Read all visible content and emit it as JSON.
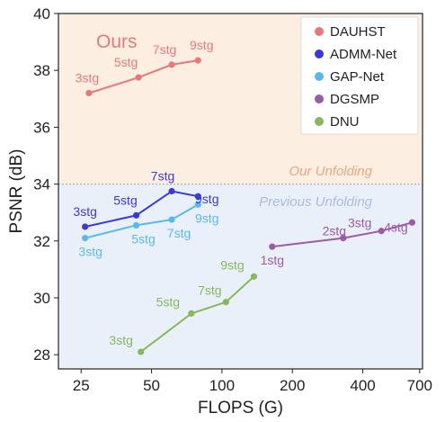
{
  "chart_data": {
    "type": "scatter",
    "title": "",
    "xlabel": "FLOPS (G)",
    "ylabel": "PSNR (dB)",
    "xscale": "log",
    "xlim": [
      20,
      720
    ],
    "ylim": [
      27.5,
      40
    ],
    "xticks": [
      25,
      50,
      100,
      200,
      400,
      700
    ],
    "xtick_labels": [
      "25",
      "50",
      "100",
      "200",
      "400",
      "700"
    ],
    "yticks": [
      28,
      30,
      32,
      34,
      36,
      38,
      40
    ],
    "ytick_labels": [
      "28",
      "30",
      "32",
      "34",
      "36",
      "38",
      "40"
    ],
    "divider_y": 34,
    "grid": false,
    "legend_position": "top-right",
    "annotations": {
      "ours": "Ours",
      "our_unfolding": "Our Unfolding",
      "previous_unfolding": "Previous Unfolding"
    },
    "region_colors": {
      "top": "#fcefe2",
      "bottom": "#eaf0f9",
      "divider": "#b8b8b8"
    },
    "series": [
      {
        "name": "DAUHST",
        "color": "#e8787c",
        "points": [
          {
            "x": 27,
            "y": 37.2,
            "label": "3stg"
          },
          {
            "x": 44,
            "y": 37.75,
            "label": "5stg"
          },
          {
            "x": 61,
            "y": 38.2,
            "label": "7stg"
          },
          {
            "x": 79,
            "y": 38.35,
            "label": "9stg"
          }
        ]
      },
      {
        "name": "ADMM-Net",
        "color": "#3a3ad8",
        "points": [
          {
            "x": 26,
            "y": 32.5,
            "label": "3stg"
          },
          {
            "x": 43,
            "y": 32.9,
            "label": "5stg"
          },
          {
            "x": 61,
            "y": 33.75,
            "label": "7stg"
          },
          {
            "x": 79,
            "y": 33.57,
            "label": "9stg"
          }
        ]
      },
      {
        "name": "GAP-Net",
        "color": "#5bb8ec",
        "points": [
          {
            "x": 26,
            "y": 32.1,
            "label": "3stg"
          },
          {
            "x": 43,
            "y": 32.55,
            "label": "5stg"
          },
          {
            "x": 61,
            "y": 32.75,
            "label": "7stg"
          },
          {
            "x": 79,
            "y": 33.28,
            "label": "9stg"
          }
        ]
      },
      {
        "name": "DGSMP",
        "color": "#9a5ba8",
        "points": [
          {
            "x": 164,
            "y": 31.8,
            "label": "1stg"
          },
          {
            "x": 330,
            "y": 32.1,
            "label": "2stg"
          },
          {
            "x": 480,
            "y": 32.35,
            "label": "3stg"
          },
          {
            "x": 650,
            "y": 32.65,
            "label": "4stg"
          }
        ]
      },
      {
        "name": "DNU",
        "color": "#86b85e",
        "points": [
          {
            "x": 45,
            "y": 28.1,
            "label": "3stg"
          },
          {
            "x": 74,
            "y": 29.45,
            "label": "5stg"
          },
          {
            "x": 104,
            "y": 29.85,
            "label": "7stg"
          },
          {
            "x": 137,
            "y": 30.75,
            "label": "9stg"
          }
        ]
      }
    ]
  }
}
